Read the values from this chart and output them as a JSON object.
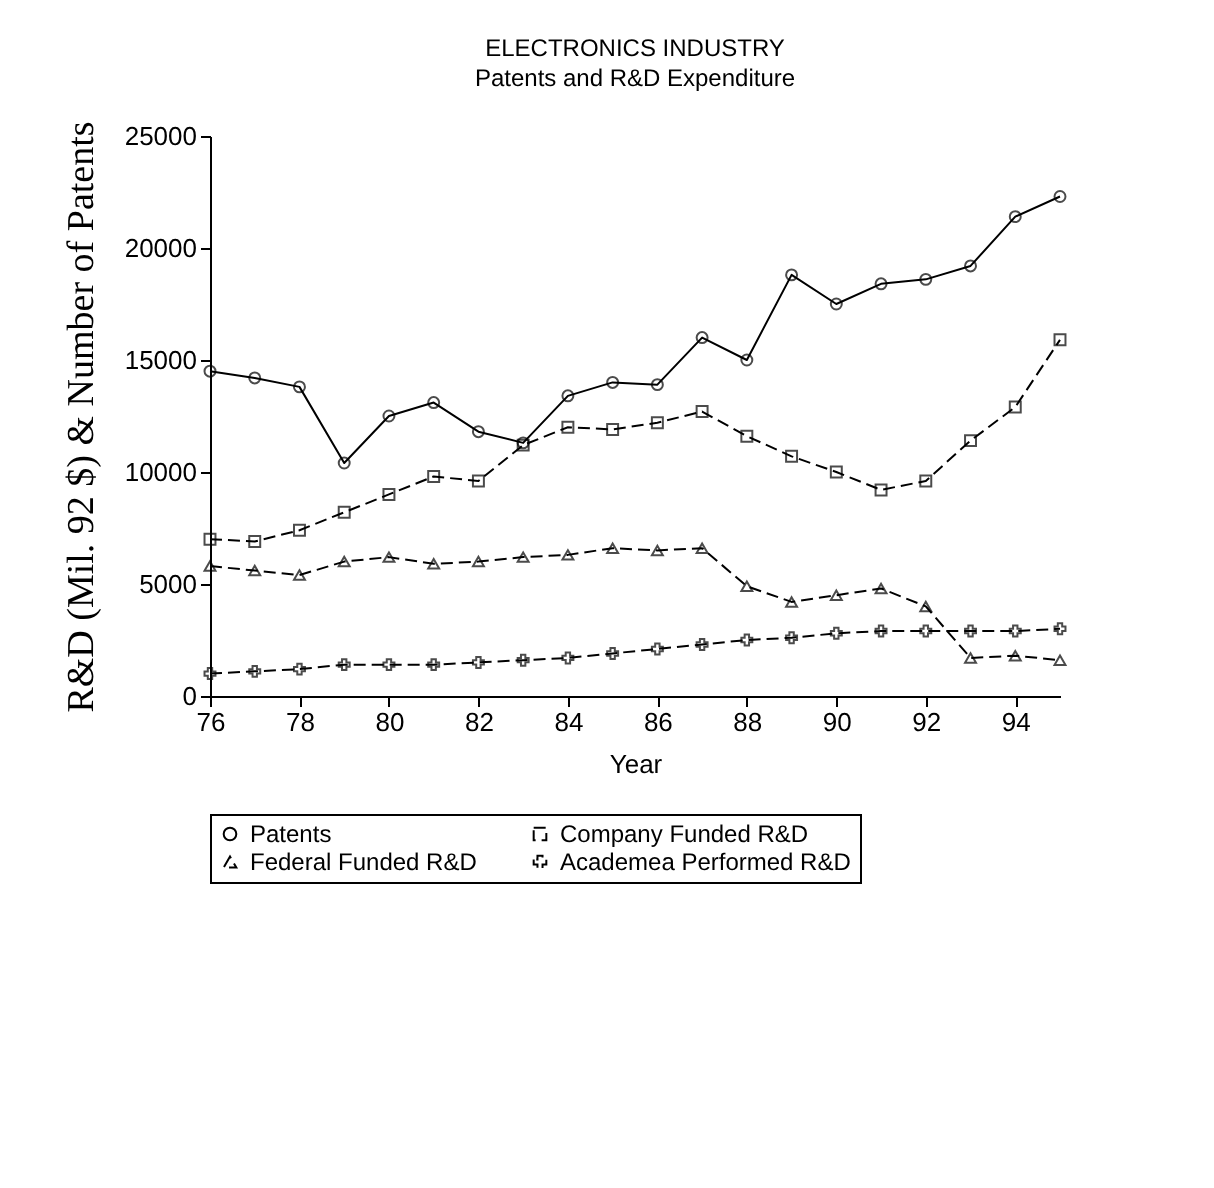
{
  "chart_data": {
    "type": "line",
    "title": "ELECTRONICS INDUSTRY",
    "subtitle": "Patents and R&D Expenditure",
    "xlabel": "Year",
    "ylabel": "R&D (Mil. 92 $) & Number of Patents",
    "x": [
      76,
      77,
      78,
      79,
      80,
      81,
      82,
      83,
      84,
      85,
      86,
      87,
      88,
      89,
      90,
      91,
      92,
      93,
      94,
      95
    ],
    "series": [
      {
        "name": "Patents",
        "color": "#000000",
        "marker": "circle",
        "line_style": "solid",
        "values": [
          14500,
          14200,
          13800,
          10400,
          12500,
          13100,
          11800,
          11300,
          13400,
          14000,
          13900,
          16000,
          15000,
          18800,
          17500,
          18400,
          18600,
          19200,
          21400,
          22300
        ]
      },
      {
        "name": "Company Funded R&D",
        "color": "#000000",
        "marker": "square",
        "line_style": "dashed",
        "values": [
          7000,
          6900,
          7400,
          8200,
          9000,
          9800,
          9600,
          11200,
          12000,
          11900,
          12200,
          12700,
          11600,
          10700,
          10000,
          9200,
          9600,
          11400,
          12900,
          15900
        ]
      },
      {
        "name": "Federal Funded R&D",
        "color": "#000000",
        "marker": "triangle",
        "line_style": "dashed",
        "values": [
          5800,
          5600,
          5400,
          6000,
          6200,
          5900,
          6000,
          6200,
          6300,
          6600,
          6500,
          6600,
          4900,
          4200,
          4500,
          4800,
          4000,
          1700,
          1800,
          1600
        ]
      },
      {
        "name": "Academea Performed R&D",
        "color": "#000000",
        "marker": "cross",
        "line_style": "dashed",
        "values": [
          1000,
          1100,
          1200,
          1400,
          1400,
          1400,
          1500,
          1600,
          1700,
          1900,
          2100,
          2300,
          2500,
          2600,
          2800,
          2900,
          2900,
          2900,
          2900,
          3000
        ]
      }
    ],
    "xlim": [
      76,
      95
    ],
    "xticks": [
      76,
      78,
      80,
      82,
      84,
      86,
      88,
      90,
      92,
      94
    ],
    "ylim": [
      0,
      25000
    ],
    "yticks": [
      0,
      5000,
      10000,
      15000,
      20000,
      25000
    ],
    "grid": false,
    "legend": "bottom"
  }
}
